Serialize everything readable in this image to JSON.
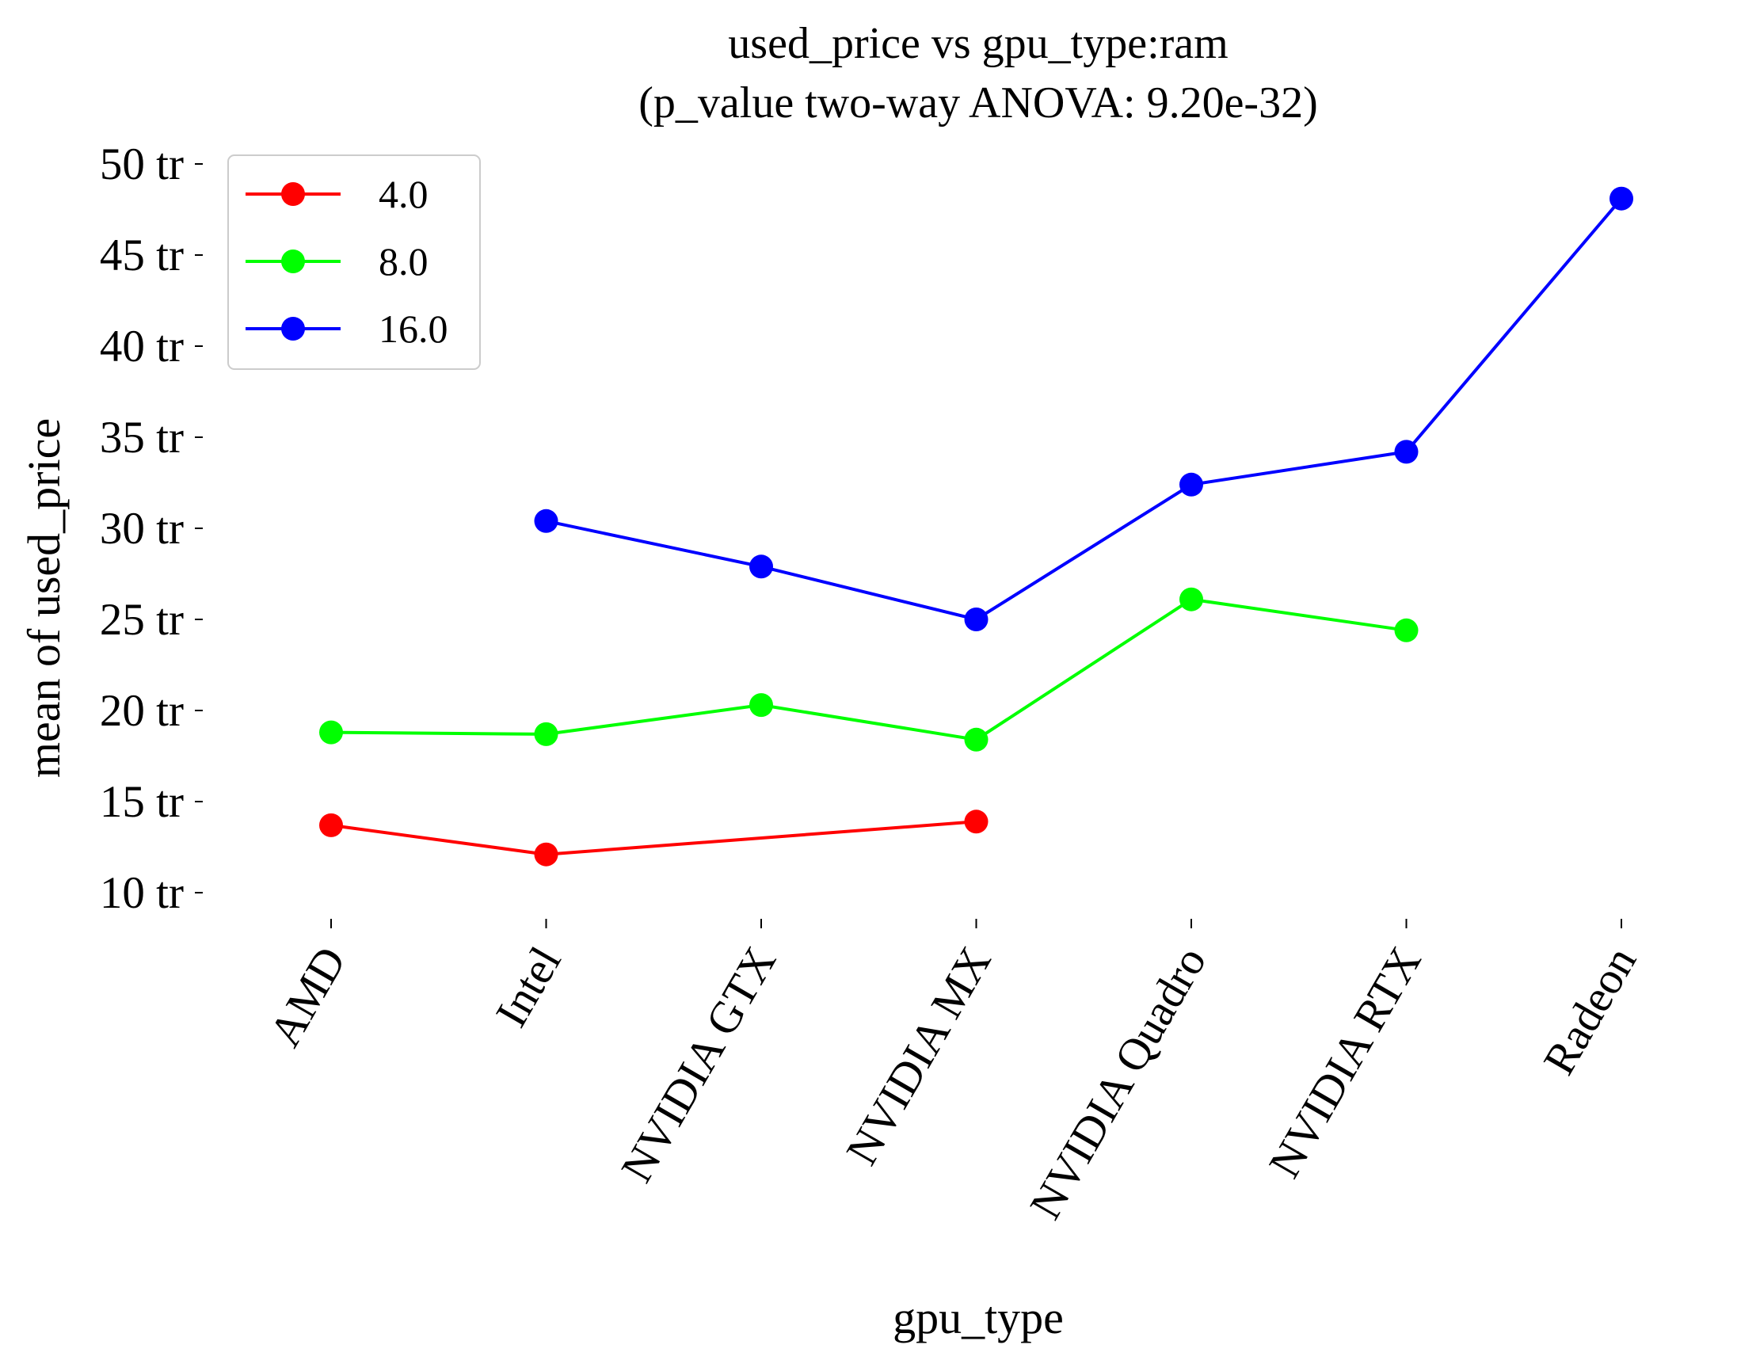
{
  "chart_data": {
    "type": "line",
    "title": "used_price vs gpu_type:ram",
    "subtitle": "(p_value two-way ANOVA: 9.20e-32)",
    "xlabel": "gpu_type",
    "ylabel": "mean of used_price",
    "categories": [
      "AMD",
      "Intel",
      "NVIDIA GTX",
      "NVIDIA MX",
      "NVIDIA Quadro",
      "NVIDIA RTX",
      "Radeon"
    ],
    "ylim": [
      8.5,
      50.5
    ],
    "yticks": [
      10,
      15,
      20,
      25,
      30,
      35,
      40,
      45,
      50
    ],
    "ytick_labels": [
      "10 tr",
      "15 tr",
      "20 tr",
      "25 tr",
      "30 tr",
      "35 tr",
      "40 tr",
      "45 tr",
      "50 tr"
    ],
    "grid": false,
    "legend_position": "top-left",
    "series": [
      {
        "name": "4.0",
        "color": "#ff0000",
        "values": [
          13.7,
          12.1,
          null,
          13.9,
          null,
          null,
          null
        ]
      },
      {
        "name": "8.0",
        "color": "#00ff00",
        "values": [
          18.8,
          18.7,
          20.3,
          18.4,
          26.1,
          24.4,
          null
        ]
      },
      {
        "name": "16.0",
        "color": "#0000ff",
        "values": [
          null,
          30.4,
          27.9,
          25.0,
          32.4,
          34.2,
          48.1
        ]
      }
    ]
  }
}
